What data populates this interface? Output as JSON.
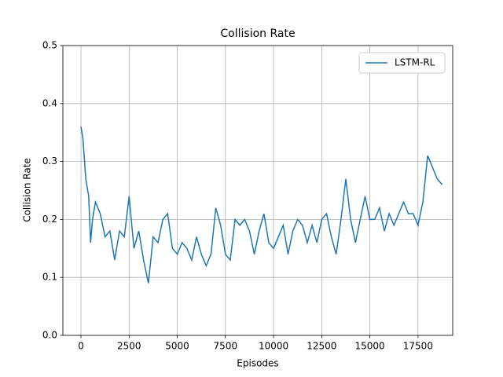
{
  "chart_data": {
    "type": "line",
    "title": "Collision Rate",
    "x_label": "Episodes",
    "y_label": "Collision Rate",
    "x": [
      0,
      100,
      250,
      400,
      500,
      600,
      750,
      1000,
      1250,
      1500,
      1750,
      2000,
      2250,
      2500,
      2750,
      3000,
      3250,
      3500,
      3750,
      4000,
      4250,
      4500,
      4750,
      5000,
      5250,
      5500,
      5750,
      6000,
      6250,
      6500,
      6750,
      7000,
      7250,
      7500,
      7750,
      8000,
      8250,
      8500,
      8750,
      9000,
      9250,
      9500,
      9750,
      10000,
      10250,
      10500,
      10750,
      11000,
      11250,
      11500,
      11750,
      12000,
      12250,
      12500,
      12750,
      13000,
      13250,
      13500,
      13750,
      14000,
      14250,
      14500,
      14750,
      15000,
      15250,
      15500,
      15750,
      16000,
      16250,
      16500,
      16750,
      17000,
      17250,
      17500,
      17750,
      18000,
      18250,
      18500,
      18750
    ],
    "series": [
      {
        "name": "LSTM-RL",
        "color": "#1f77b4",
        "values": [
          0.36,
          0.34,
          0.27,
          0.24,
          0.16,
          0.2,
          0.23,
          0.21,
          0.17,
          0.18,
          0.13,
          0.18,
          0.17,
          0.24,
          0.15,
          0.18,
          0.13,
          0.09,
          0.17,
          0.16,
          0.2,
          0.21,
          0.15,
          0.14,
          0.16,
          0.15,
          0.13,
          0.17,
          0.14,
          0.12,
          0.14,
          0.22,
          0.19,
          0.14,
          0.13,
          0.2,
          0.19,
          0.2,
          0.18,
          0.14,
          0.18,
          0.21,
          0.16,
          0.15,
          0.17,
          0.19,
          0.14,
          0.18,
          0.2,
          0.19,
          0.16,
          0.19,
          0.16,
          0.2,
          0.21,
          0.17,
          0.14,
          0.2,
          0.27,
          0.2,
          0.16,
          0.2,
          0.24,
          0.2,
          0.2,
          0.22,
          0.18,
          0.21,
          0.19,
          0.21,
          0.23,
          0.21,
          0.21,
          0.19,
          0.23,
          0.31,
          0.29,
          0.27,
          0.26
        ]
      }
    ],
    "xlim": [
      -940,
      19300
    ],
    "ylim": [
      0,
      0.5
    ],
    "xticks": [
      0,
      2500,
      5000,
      7500,
      10000,
      12500,
      15000,
      17500
    ],
    "yticks": [
      {
        "value": 0,
        "label": "0.0"
      },
      0.1,
      0.2,
      0.3,
      0.4,
      0.5
    ],
    "grid": true,
    "legend_position": "upper-right"
  }
}
